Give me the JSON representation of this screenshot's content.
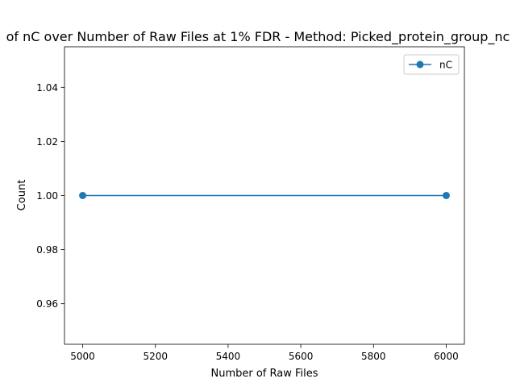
{
  "chart_data": {
    "type": "line",
    "title": "of nC over Number of Raw Files at 1% FDR - Method: Picked_protein_group_nc",
    "xlabel": "Number of Raw Files",
    "ylabel": "Count",
    "xlim": [
      4950,
      6050
    ],
    "ylim": [
      0.945,
      1.055
    ],
    "xticks": [
      5000,
      5200,
      5400,
      5600,
      5800,
      6000
    ],
    "xtick_labels": [
      "5000",
      "5200",
      "5400",
      "5600",
      "5800",
      "6000"
    ],
    "yticks": [
      0.96,
      0.98,
      1.0,
      1.02,
      1.04
    ],
    "ytick_labels": [
      "0.96",
      "0.98",
      "1.00",
      "1.02",
      "1.04"
    ],
    "grid": false,
    "legend_position": "top-right",
    "series": [
      {
        "name": "nC",
        "color": "#1f77b4",
        "marker": "circle",
        "x": [
          5000,
          6000
        ],
        "y": [
          1.0,
          1.0
        ]
      }
    ]
  }
}
